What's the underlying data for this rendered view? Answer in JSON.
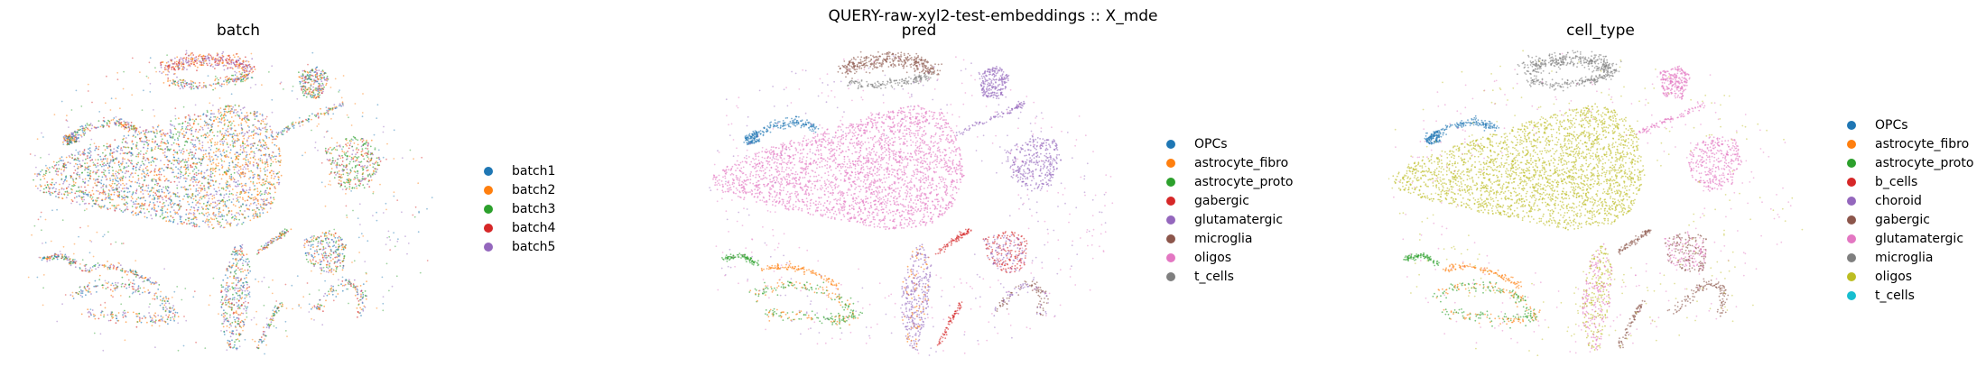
{
  "figure": {
    "suptitle": "QUERY-raw-xyl2-test-embeddings :: X_mde"
  },
  "chart_data": [
    {
      "type": "scatter",
      "title": "batch",
      "xlabel": "",
      "ylabel": "",
      "grid": false,
      "legend_placement": "right",
      "series": [
        {
          "name": "batch1",
          "color": "#1f77b4"
        },
        {
          "name": "batch2",
          "color": "#ff7f0e"
        },
        {
          "name": "batch3",
          "color": "#2ca02c"
        },
        {
          "name": "batch4",
          "color": "#d62728"
        },
        {
          "name": "batch5",
          "color": "#9467bd"
        }
      ]
    },
    {
      "type": "scatter",
      "title": "pred",
      "xlabel": "",
      "ylabel": "",
      "grid": false,
      "legend_placement": "right",
      "series": [
        {
          "name": "OPCs",
          "color": "#1f77b4"
        },
        {
          "name": "astrocyte_fibro",
          "color": "#ff7f0e"
        },
        {
          "name": "astrocyte_proto",
          "color": "#2ca02c"
        },
        {
          "name": "gabergic",
          "color": "#d62728"
        },
        {
          "name": "glutamatergic",
          "color": "#9467bd"
        },
        {
          "name": "microglia",
          "color": "#8c564b"
        },
        {
          "name": "oligos",
          "color": "#e377c2"
        },
        {
          "name": "t_cells",
          "color": "#7f7f7f"
        }
      ]
    },
    {
      "type": "scatter",
      "title": "cell_type",
      "xlabel": "",
      "ylabel": "",
      "grid": false,
      "legend_placement": "right",
      "series": [
        {
          "name": "OPCs",
          "color": "#1f77b4"
        },
        {
          "name": "astrocyte_fibro",
          "color": "#ff7f0e"
        },
        {
          "name": "astrocyte_proto",
          "color": "#2ca02c"
        },
        {
          "name": "b_cells",
          "color": "#d62728"
        },
        {
          "name": "choroid",
          "color": "#9467bd"
        },
        {
          "name": "gabergic",
          "color": "#8c564b"
        },
        {
          "name": "glutamatergic",
          "color": "#e377c2"
        },
        {
          "name": "microglia",
          "color": "#7f7f7f"
        },
        {
          "name": "oligos",
          "color": "#bcbd22"
        },
        {
          "name": "t_cells",
          "color": "#17becf"
        }
      ]
    }
  ]
}
